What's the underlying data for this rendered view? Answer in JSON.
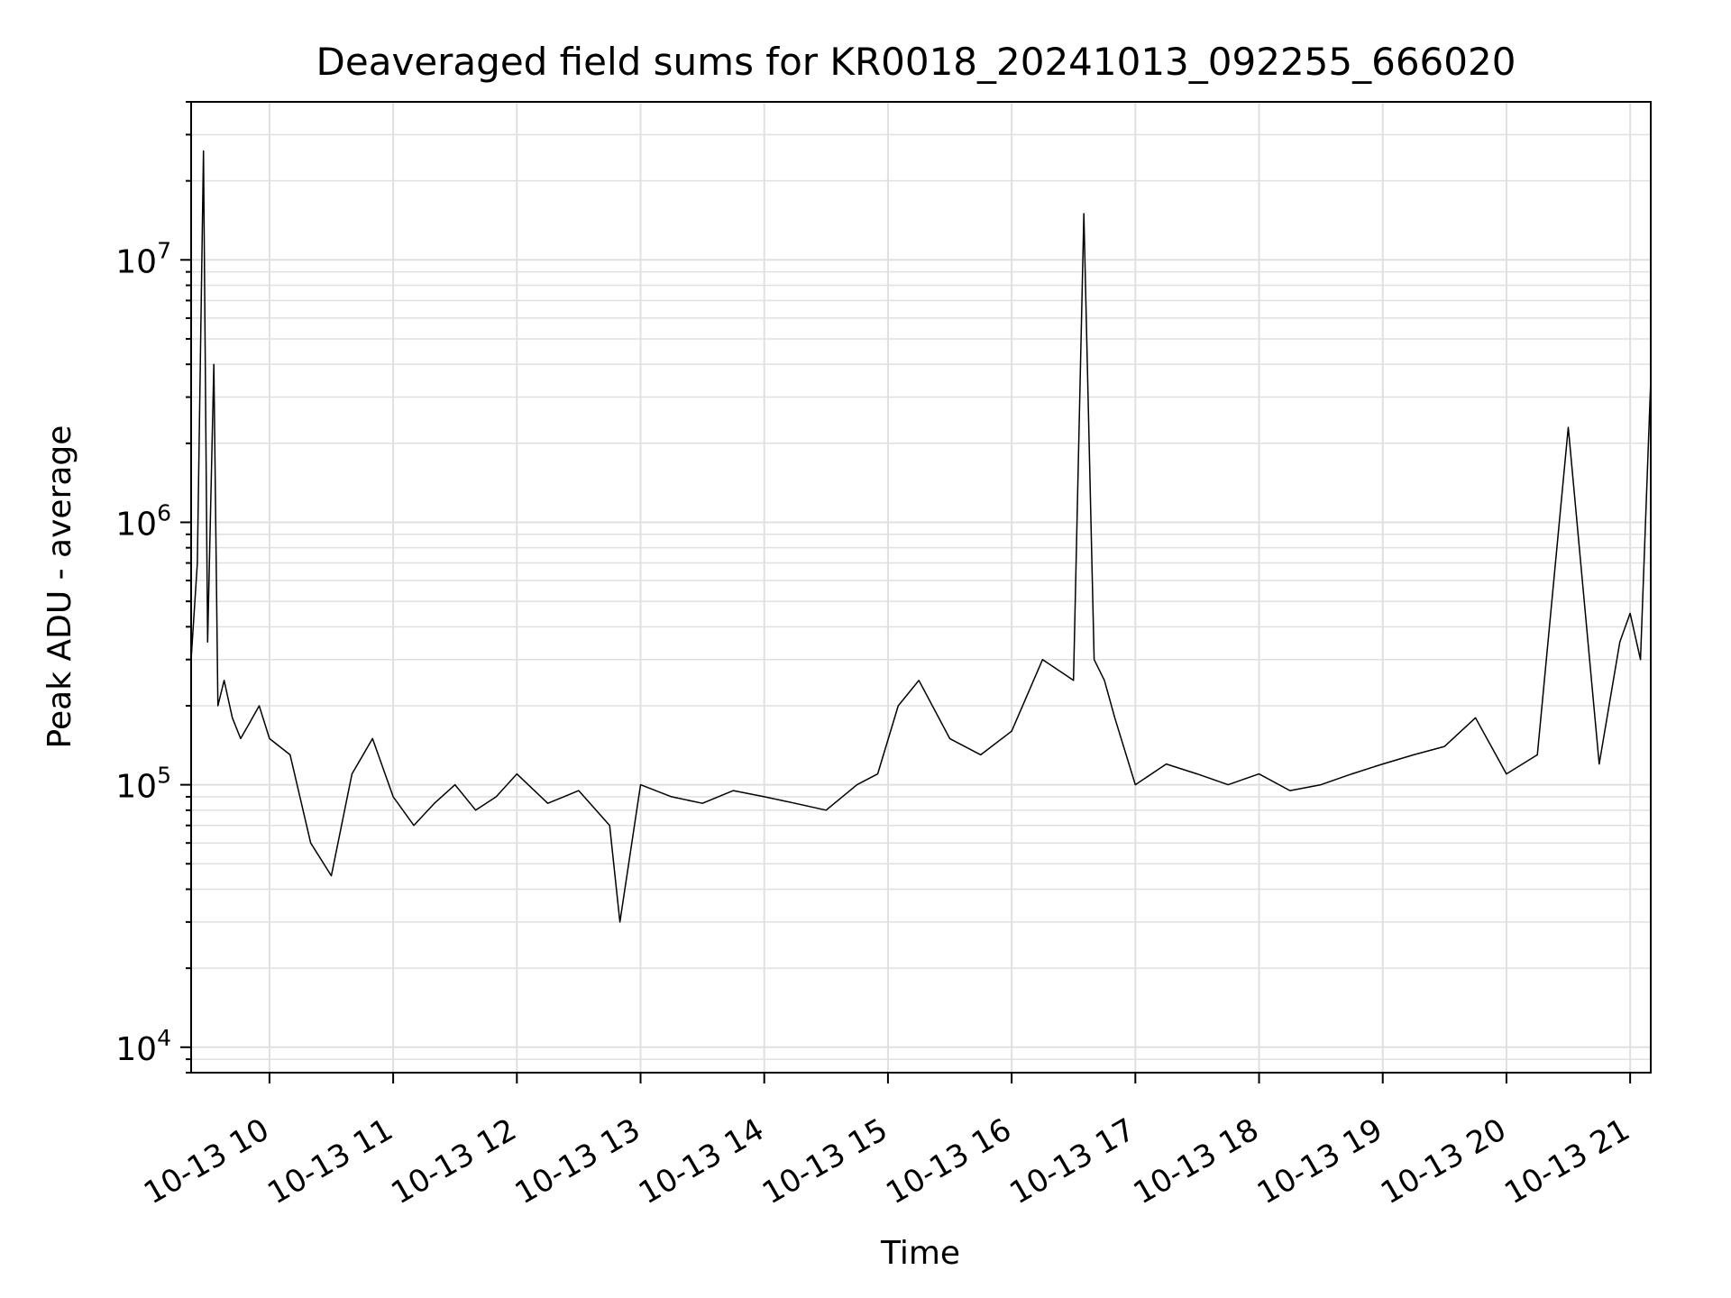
{
  "chart_data": {
    "type": "line",
    "title": "Deaveraged field sums for KR0018_20241013_092255_666020",
    "xlabel": "Time",
    "ylabel": "Peak ADU - average",
    "yscale": "log",
    "xlim": [
      "2024-10-13 09:22",
      "2024-10-13 21:10"
    ],
    "ylim": [
      8000,
      40000000
    ],
    "grid": true,
    "line_color": "#000000",
    "x_ticks": [
      {
        "t": "2024-10-13 10:00",
        "label": "10-13 10"
      },
      {
        "t": "2024-10-13 11:00",
        "label": "10-13 11"
      },
      {
        "t": "2024-10-13 12:00",
        "label": "10-13 12"
      },
      {
        "t": "2024-10-13 13:00",
        "label": "10-13 13"
      },
      {
        "t": "2024-10-13 14:00",
        "label": "10-13 14"
      },
      {
        "t": "2024-10-13 15:00",
        "label": "10-13 15"
      },
      {
        "t": "2024-10-13 16:00",
        "label": "10-13 16"
      },
      {
        "t": "2024-10-13 17:00",
        "label": "10-13 17"
      },
      {
        "t": "2024-10-13 18:00",
        "label": "10-13 18"
      },
      {
        "t": "2024-10-13 19:00",
        "label": "10-13 19"
      },
      {
        "t": "2024-10-13 20:00",
        "label": "10-13 20"
      },
      {
        "t": "2024-10-13 21:00",
        "label": "10-13 21"
      }
    ],
    "y_ticks": [
      {
        "value": 10000,
        "base": "10",
        "exp": "4"
      },
      {
        "value": 100000,
        "base": "10",
        "exp": "5"
      },
      {
        "value": 1000000,
        "base": "10",
        "exp": "6"
      },
      {
        "value": 10000000,
        "base": "10",
        "exp": "7"
      }
    ],
    "series": [
      {
        "x": [
          "2024-10-13 09:22",
          "2024-10-13 09:25",
          "2024-10-13 09:28",
          "2024-10-13 09:30",
          "2024-10-13 09:33",
          "2024-10-13 09:35",
          "2024-10-13 09:38",
          "2024-10-13 09:42",
          "2024-10-13 09:46",
          "2024-10-13 09:50",
          "2024-10-13 09:55",
          "2024-10-13 10:00",
          "2024-10-13 10:10",
          "2024-10-13 10:20",
          "2024-10-13 10:30",
          "2024-10-13 10:40",
          "2024-10-13 10:50",
          "2024-10-13 11:00",
          "2024-10-13 11:10",
          "2024-10-13 11:20",
          "2024-10-13 11:30",
          "2024-10-13 11:40",
          "2024-10-13 11:50",
          "2024-10-13 12:00",
          "2024-10-13 12:15",
          "2024-10-13 12:30",
          "2024-10-13 12:45",
          "2024-10-13 12:50",
          "2024-10-13 13:00",
          "2024-10-13 13:15",
          "2024-10-13 13:30",
          "2024-10-13 13:45",
          "2024-10-13 14:00",
          "2024-10-13 14:15",
          "2024-10-13 14:30",
          "2024-10-13 14:45",
          "2024-10-13 14:55",
          "2024-10-13 15:05",
          "2024-10-13 15:15",
          "2024-10-13 15:30",
          "2024-10-13 15:45",
          "2024-10-13 16:00",
          "2024-10-13 16:15",
          "2024-10-13 16:30",
          "2024-10-13 16:35",
          "2024-10-13 16:40",
          "2024-10-13 16:45",
          "2024-10-13 16:50",
          "2024-10-13 17:00",
          "2024-10-13 17:15",
          "2024-10-13 17:30",
          "2024-10-13 17:45",
          "2024-10-13 18:00",
          "2024-10-13 18:15",
          "2024-10-13 18:30",
          "2024-10-13 18:45",
          "2024-10-13 19:00",
          "2024-10-13 19:15",
          "2024-10-13 19:30",
          "2024-10-13 19:45",
          "2024-10-13 20:00",
          "2024-10-13 20:15",
          "2024-10-13 20:30",
          "2024-10-13 20:45",
          "2024-10-13 20:55",
          "2024-10-13 21:00",
          "2024-10-13 21:05",
          "2024-10-13 21:10"
        ],
        "y": [
          300000,
          700000,
          26000000,
          350000,
          4000000,
          200000,
          250000,
          180000,
          150000,
          170000,
          200000,
          150000,
          130000,
          60000,
          45000,
          110000,
          150000,
          90000,
          70000,
          85000,
          100000,
          80000,
          90000,
          110000,
          85000,
          95000,
          70000,
          30000,
          100000,
          90000,
          85000,
          95000,
          90000,
          85000,
          80000,
          100000,
          110000,
          200000,
          250000,
          150000,
          130000,
          160000,
          300000,
          250000,
          15000000,
          300000,
          250000,
          180000,
          100000,
          120000,
          110000,
          100000,
          110000,
          95000,
          100000,
          110000,
          120000,
          130000,
          140000,
          180000,
          110000,
          130000,
          2300000,
          120000,
          350000,
          450000,
          300000,
          3500000
        ]
      }
    ]
  }
}
